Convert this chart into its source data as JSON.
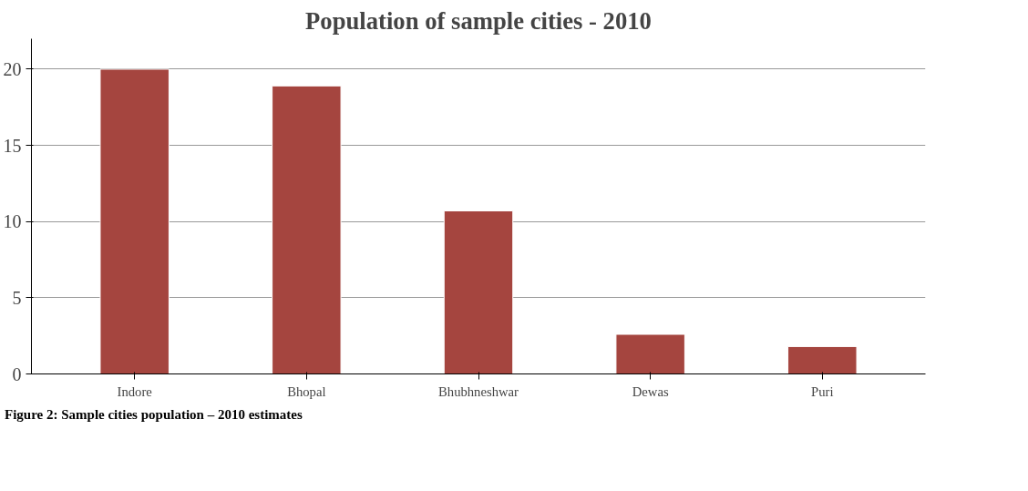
{
  "chart_data": {
    "type": "bar",
    "title": "Population of sample cities - 2010",
    "categories": [
      "Indore",
      "Bhopal",
      "Bhubhneshwar",
      "Dewas",
      "Puri"
    ],
    "values": [
      20,
      18.9,
      10.7,
      2.6,
      1.8
    ],
    "color": "#a5453f",
    "ylim": [
      0,
      22
    ],
    "yticks": [
      0,
      5,
      10,
      15,
      20
    ],
    "grid": "y",
    "annotations": [
      "Figure 2: Sample cities population – 2010 estimates"
    ]
  }
}
